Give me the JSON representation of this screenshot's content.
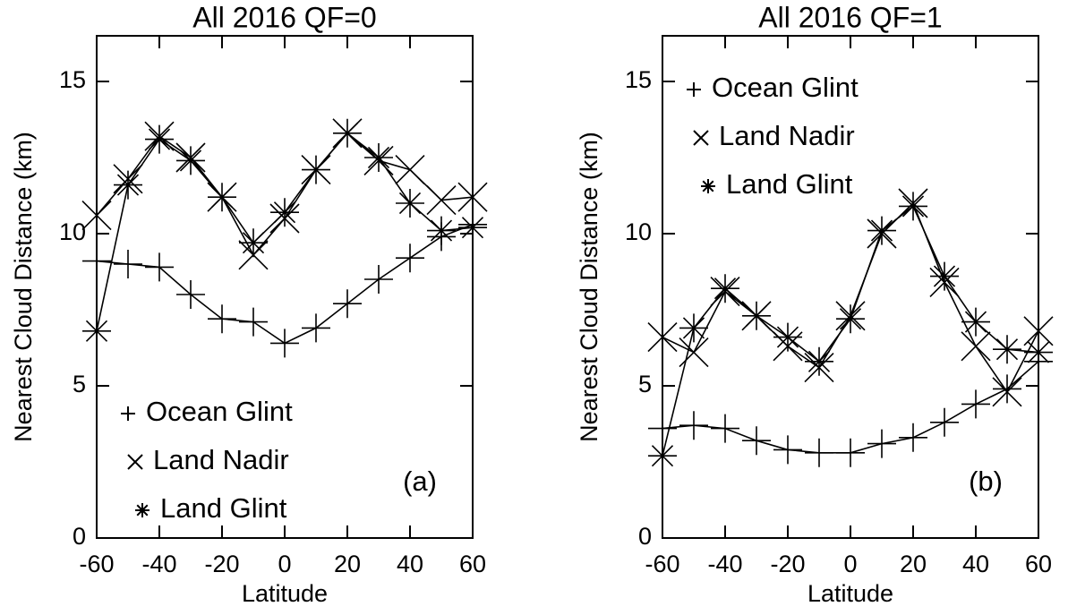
{
  "chart_data": [
    {
      "type": "line",
      "title": "All 2016 QF=0",
      "x_label": "Latitude",
      "y_label": "Nearest Cloud Distance (km)",
      "annotation": "(a)",
      "legend": "lower left",
      "x": [
        -60,
        -50,
        -40,
        -30,
        -20,
        -10,
        0,
        10,
        20,
        30,
        40,
        50,
        60
      ],
      "xlim": [
        -60,
        60
      ],
      "xticks": [
        -60,
        -40,
        -20,
        0,
        20,
        40,
        60
      ],
      "ylim": [
        0,
        16.5
      ],
      "yticks": [
        0,
        5,
        10,
        15
      ],
      "series": [
        {
          "name": "Ocean Glint",
          "marker": "+",
          "color": "#000000",
          "values": [
            9.1,
            9.0,
            8.9,
            8.0,
            7.2,
            7.1,
            6.4,
            6.9,
            7.7,
            8.5,
            9.2,
            9.9,
            10.3
          ]
        },
        {
          "name": "Land Nadir",
          "marker": "x",
          "color": "#000000",
          "values": [
            10.6,
            11.8,
            13.2,
            12.5,
            11.2,
            9.3,
            10.5,
            12.1,
            13.3,
            12.4,
            12.1,
            11.1,
            11.2
          ]
        },
        {
          "name": "Land Glint",
          "marker": "*",
          "color": "#000000",
          "values": [
            6.8,
            11.6,
            13.1,
            12.4,
            11.2,
            9.7,
            10.7,
            12.1,
            13.3,
            12.5,
            11.0,
            10.1,
            10.2
          ]
        }
      ]
    },
    {
      "type": "line",
      "title": "All 2016 QF=1",
      "x_label": "Latitude",
      "y_label": "Nearest Cloud Distance (km)",
      "annotation": "(b)",
      "legend": "upper left",
      "x": [
        -60,
        -50,
        -40,
        -30,
        -20,
        -10,
        0,
        10,
        20,
        30,
        40,
        50,
        60
      ],
      "xlim": [
        -60,
        60
      ],
      "xticks": [
        -60,
        -40,
        -20,
        0,
        20,
        40,
        60
      ],
      "ylim": [
        0,
        16.5
      ],
      "yticks": [
        0,
        5,
        10,
        15
      ],
      "series": [
        {
          "name": "Ocean Glint",
          "marker": "+",
          "color": "#000000",
          "values": [
            3.6,
            3.7,
            3.6,
            3.2,
            2.9,
            2.8,
            2.8,
            3.1,
            3.3,
            3.8,
            4.4,
            4.9,
            5.8
          ]
        },
        {
          "name": "Land Nadir",
          "marker": "x",
          "color": "#000000",
          "values": [
            6.6,
            6.1,
            8.1,
            7.3,
            6.3,
            5.6,
            7.3,
            10.0,
            11.0,
            8.4,
            6.3,
            4.8,
            6.8
          ]
        },
        {
          "name": "Land Glint",
          "marker": "*",
          "color": "#000000",
          "values": [
            2.7,
            6.9,
            8.2,
            7.3,
            6.6,
            5.8,
            7.2,
            10.1,
            10.9,
            8.6,
            7.1,
            6.2,
            6.1
          ]
        }
      ]
    }
  ]
}
